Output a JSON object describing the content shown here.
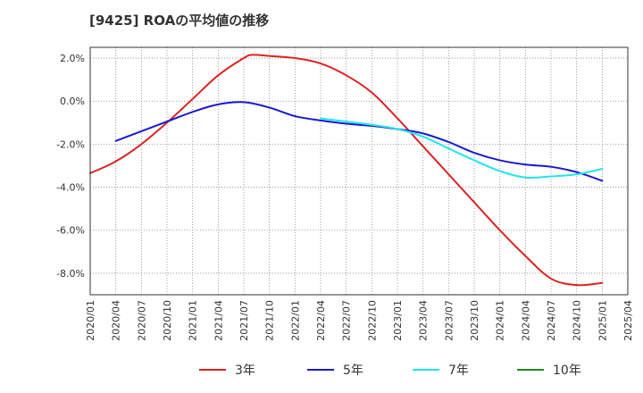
{
  "chart_data": {
    "type": "line",
    "title": "[9425]  ROAの平均値の推移",
    "xlabel": "",
    "ylabel": "",
    "ylim": [
      -9.0,
      2.5
    ],
    "y_ticks": [
      2.0,
      0.0,
      -2.0,
      -4.0,
      -6.0,
      -8.0
    ],
    "y_tick_labels": [
      "2.0%",
      "0.0%",
      "-2.0%",
      "-4.0%",
      "-6.0%",
      "-8.0%"
    ],
    "x_tick_labels": [
      "2020/01",
      "2020/04",
      "2020/07",
      "2020/10",
      "2021/01",
      "2021/04",
      "2021/07",
      "2021/10",
      "2022/01",
      "2022/04",
      "2022/07",
      "2022/10",
      "2023/01",
      "2023/04",
      "2023/07",
      "2023/10",
      "2024/01",
      "2024/04",
      "2024/07",
      "2024/10",
      "2025/01",
      "2025/04"
    ],
    "grid": true,
    "legend_position": "bottom",
    "series": [
      {
        "name": "3年",
        "color": "#dd2222",
        "x": [
          "2020/01",
          "2020/04",
          "2020/07",
          "2020/10",
          "2021/01",
          "2021/04",
          "2021/07",
          "2021/08",
          "2021/10",
          "2022/01",
          "2022/04",
          "2022/07",
          "2022/10",
          "2023/01",
          "2023/04",
          "2023/07",
          "2023/10",
          "2024/01",
          "2024/04",
          "2024/07",
          "2024/10",
          "2025/01"
        ],
        "values": [
          -3.35,
          -2.8,
          -2.0,
          -1.0,
          0.1,
          1.2,
          2.0,
          2.15,
          2.1,
          2.0,
          1.75,
          1.2,
          0.4,
          -0.8,
          -2.1,
          -3.4,
          -4.7,
          -6.0,
          -7.2,
          -8.25,
          -8.55,
          -8.45
        ]
      },
      {
        "name": "5年",
        "color": "#1a1acc",
        "x": [
          "2020/04",
          "2020/07",
          "2020/10",
          "2021/01",
          "2021/04",
          "2021/07",
          "2021/10",
          "2022/01",
          "2022/04",
          "2022/07",
          "2022/10",
          "2023/01",
          "2023/04",
          "2023/07",
          "2023/10",
          "2024/01",
          "2024/04",
          "2024/07",
          "2024/10",
          "2025/01"
        ],
        "values": [
          -1.85,
          -1.4,
          -0.95,
          -0.5,
          -0.15,
          -0.05,
          -0.3,
          -0.7,
          -0.9,
          -1.05,
          -1.15,
          -1.3,
          -1.5,
          -1.9,
          -2.4,
          -2.75,
          -2.95,
          -3.05,
          -3.3,
          -3.7
        ]
      },
      {
        "name": "7年",
        "color": "#22e5ee",
        "x": [
          "2022/04",
          "2022/07",
          "2022/10",
          "2023/01",
          "2023/04",
          "2023/07",
          "2023/10",
          "2024/01",
          "2024/04",
          "2024/07",
          "2024/10",
          "2025/01"
        ],
        "values": [
          -0.8,
          -0.95,
          -1.1,
          -1.3,
          -1.65,
          -2.2,
          -2.75,
          -3.25,
          -3.55,
          -3.5,
          -3.4,
          -3.15
        ]
      },
      {
        "name": "10年",
        "color": "#228822",
        "x": [],
        "values": []
      }
    ]
  }
}
